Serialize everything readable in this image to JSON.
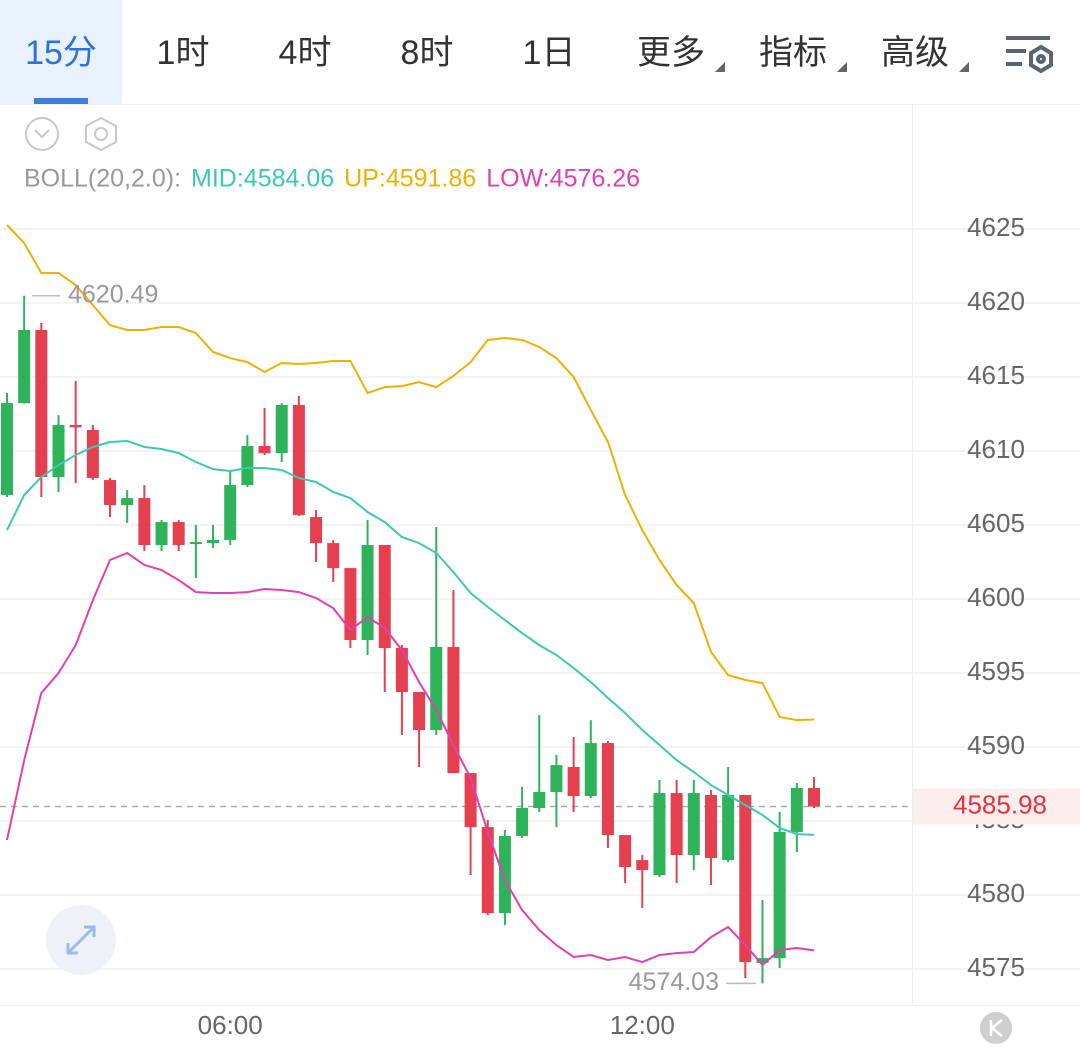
{
  "tabs": [
    {
      "label": "15分"
    },
    {
      "label": "1时"
    },
    {
      "label": "4时"
    },
    {
      "label": "8时"
    },
    {
      "label": "1日"
    },
    {
      "label": "更多",
      "dropdown": true
    },
    {
      "label": "指标",
      "dropdown": true
    },
    {
      "label": "高级",
      "dropdown": true
    }
  ],
  "active_tab": 0,
  "chart_data": {
    "type": "candlestick",
    "indicator_label": "BOLL(20,2.0):",
    "categories": [
      null,
      null,
      null,
      null,
      null,
      null,
      null,
      null,
      null,
      null,
      null,
      null,
      null,
      "06:00",
      null,
      null,
      null,
      null,
      null,
      null,
      null,
      null,
      null,
      null,
      null,
      null,
      null,
      null,
      null,
      null,
      null,
      null,
      null,
      null,
      null,
      null,
      null,
      "12:00",
      null,
      null,
      null,
      null,
      null,
      null,
      null,
      null,
      null,
      null
    ],
    "open": [
      4607.03,
      4613.24,
      4618.18,
      4608.24,
      4611.76,
      4611.42,
      4608.04,
      4606.35,
      4606.82,
      4603.65,
      4605.2,
      4603.72,
      4603.78,
      4603.99,
      4607.7,
      4610.34,
      4609.86,
      4613.11,
      4605.54,
      4603.78,
      4602.09,
      4597.23,
      4603.65,
      4596.69,
      4593.72,
      4591.15,
      4596.76,
      4588.24,
      4584.59,
      4578.78,
      4583.99,
      4585.88,
      4586.96,
      4588.65,
      4586.69,
      4590.27,
      4584.05,
      4582.36,
      4581.35,
      4586.89,
      4582.7,
      4586.76,
      4582.36,
      4586.76,
      4575.41,
      4575.74,
      4584.26,
      4587.23
    ],
    "high": [
      4613.92,
      4620.49,
      4618.65,
      4612.43,
      4614.73,
      4611.76,
      4608.18,
      4607.36,
      4607.7,
      4605.34,
      4605.34,
      4605.0,
      4605.0,
      4608.72,
      4611.08,
      4612.91,
      4613.24,
      4613.72,
      4606.01,
      4603.99,
      4602.09,
      4605.34,
      4603.65,
      4596.89,
      4593.72,
      4604.86,
      4600.61,
      4588.24,
      4585.07,
      4584.39,
      4587.3,
      4592.16,
      4589.46,
      4590.68,
      4591.82,
      4590.41,
      4584.05,
      4582.7,
      4587.77,
      4587.77,
      4587.77,
      4587.09,
      4588.65,
      4586.76,
      4579.66,
      4585.61,
      4587.57,
      4587.97
    ],
    "low": [
      4606.89,
      4613.2,
      4606.89,
      4607.23,
      4607.84,
      4608.04,
      4605.54,
      4605.14,
      4603.24,
      4603.24,
      4603.24,
      4601.42,
      4603.45,
      4603.65,
      4607.57,
      4609.73,
      4609.26,
      4605.61,
      4602.5,
      4601.15,
      4596.69,
      4596.22,
      4593.72,
      4590.81,
      4588.65,
      4590.81,
      4588.24,
      4581.35,
      4578.65,
      4577.97,
      4583.85,
      4585.61,
      4584.59,
      4585.61,
      4586.55,
      4583.18,
      4580.81,
      4579.12,
      4581.22,
      4580.81,
      4581.69,
      4580.68,
      4582.23,
      4574.39,
      4574.03,
      4575.07,
      4582.91,
      4585.88
    ],
    "close": [
      4613.24,
      4618.18,
      4608.24,
      4611.76,
      4611.6,
      4608.18,
      4606.35,
      4606.82,
      4603.65,
      4605.2,
      4603.65,
      4603.85,
      4603.99,
      4607.7,
      4610.34,
      4609.86,
      4613.11,
      4605.68,
      4603.78,
      4602.09,
      4597.23,
      4603.65,
      4596.69,
      4593.72,
      4591.15,
      4596.76,
      4588.24,
      4584.59,
      4578.78,
      4583.99,
      4585.88,
      4586.96,
      4588.78,
      4586.69,
      4590.27,
      4584.05,
      4581.89,
      4581.69,
      4586.89,
      4582.7,
      4586.89,
      4582.5,
      4586.76,
      4575.47,
      4575.74,
      4584.26,
      4587.23,
      4585.98
    ],
    "up_color": "#2fb35a",
    "down_color": "#e5404f",
    "overlays": [
      {
        "name": "MID:4584.06",
        "color": "#3cc9b0",
        "values": [
          4604.66,
          4607.03,
          4608.24,
          4609.05,
          4609.73,
          4610.27,
          4610.61,
          4610.68,
          4610.27,
          4610.14,
          4609.86,
          4609.26,
          4608.78,
          4608.65,
          4608.85,
          4608.85,
          4608.72,
          4608.18,
          4607.91,
          4607.23,
          4606.82,
          4605.88,
          4605.2,
          4604.19,
          4603.78,
          4603.11,
          4601.82,
          4600.41,
          4599.46,
          4598.58,
          4597.7,
          4596.89,
          4596.22,
          4595.34,
          4594.39,
          4593.31,
          4592.3,
          4591.15,
          4590.14,
          4589.12,
          4588.31,
          4587.43,
          4586.76,
          4586.08,
          4585.41,
          4584.53,
          4584.12,
          4584.06
        ]
      },
      {
        "name": "UP:4591.86",
        "color": "#f0b000",
        "values": [
          4625.27,
          4624.05,
          4622.03,
          4622.03,
          4621.22,
          4619.86,
          4618.51,
          4618.18,
          4618.18,
          4618.38,
          4618.38,
          4617.97,
          4616.69,
          4616.28,
          4616.01,
          4615.34,
          4615.95,
          4615.88,
          4615.95,
          4616.08,
          4616.08,
          4613.92,
          4614.32,
          4614.39,
          4614.66,
          4614.32,
          4615.07,
          4616.01,
          4617.5,
          4617.64,
          4617.5,
          4617.03,
          4616.28,
          4615.0,
          4612.77,
          4610.61,
          4607.03,
          4604.66,
          4602.64,
          4600.95,
          4599.73,
          4596.42,
          4594.86,
          4594.53,
          4594.32,
          4592.03,
          4591.82,
          4591.86
        ]
      },
      {
        "name": "LOW:4576.26",
        "color": "#e040b0",
        "values": [
          4583.72,
          4589.12,
          4593.65,
          4595.0,
          4596.89,
          4599.93,
          4602.64,
          4603.11,
          4602.3,
          4601.96,
          4601.28,
          4600.47,
          4600.41,
          4600.41,
          4600.47,
          4600.68,
          4600.61,
          4600.47,
          4600.07,
          4599.39,
          4597.91,
          4598.78,
          4598.04,
          4596.55,
          4594.39,
          4592.5,
          4590.14,
          4587.91,
          4584.26,
          4581.01,
          4578.99,
          4577.64,
          4576.62,
          4575.81,
          4575.95,
          4575.61,
          4575.81,
          4575.47,
          4575.95,
          4576.08,
          4576.15,
          4577.16,
          4577.84,
          4576.62,
          4575.27,
          4576.28,
          4576.42,
          4576.26
        ]
      }
    ],
    "ylim": [
      4572.57,
      4633.38
    ],
    "yticks": [
      4575,
      4580,
      4585,
      4590,
      4595,
      4600,
      4605,
      4610,
      4615,
      4620,
      4625
    ],
    "grid": true,
    "last_price": 4585.98,
    "max_label": 4620.49,
    "min_label": 4574.03
  }
}
